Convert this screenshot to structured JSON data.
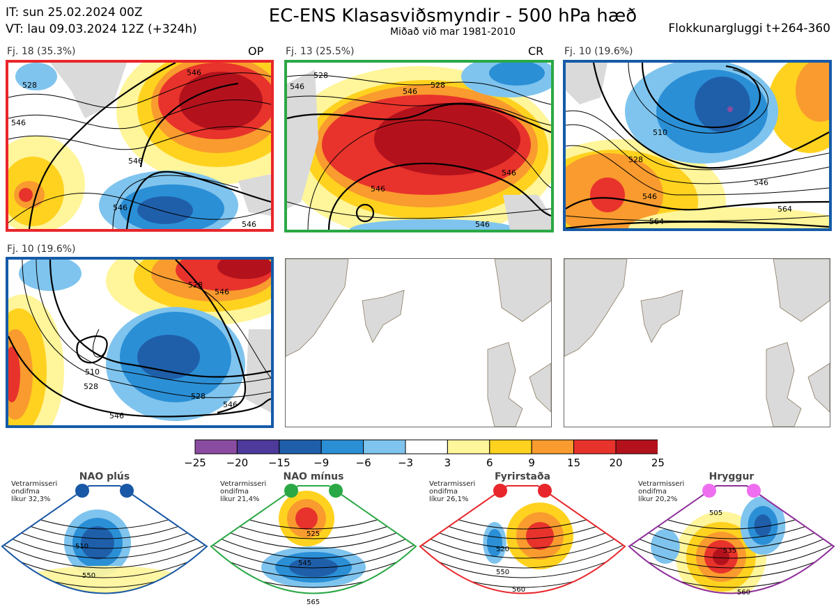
{
  "header": {
    "it": "IT: sun 25.02.2024 00Z",
    "vt": "VT: lau 09.03.2024 12Z  (+324h)",
    "title": "EC-ENS Klasasviðsmyndir - 500 hPa hæð",
    "subtitle": "Miðað við mar 1981-2010",
    "window": "Flokkunargluggi t+264-360"
  },
  "panels": [
    {
      "label": "Fj. 18 (35.3%)",
      "tag": "OP",
      "border": "#e8262b",
      "contours": [
        "528",
        "546",
        "546",
        "546",
        "546",
        "546"
      ]
    },
    {
      "label": "Fj. 13 (25.5%)",
      "tag": "CR",
      "border": "#2aa845",
      "contours": [
        "528",
        "546",
        "528",
        "546",
        "546",
        "546",
        "546"
      ]
    },
    {
      "label": "Fj. 10 (19.6%)",
      "tag": "",
      "border": "#155ba8",
      "contours": [
        "510",
        "528",
        "546",
        "546",
        "564",
        "564"
      ]
    },
    {
      "label": "Fj. 10 (19.6%)",
      "tag": "",
      "border": "#155ba8",
      "contours": [
        "528",
        "546",
        "510",
        "528",
        "528",
        "546",
        "546"
      ]
    }
  ],
  "colorbar": {
    "colors": [
      "#8a4ca0",
      "#4d3a9a",
      "#1f5faa",
      "#2b8fd6",
      "#7fc4ee",
      "#ffffff",
      "#fff59a",
      "#ffd21f",
      "#f99b2e",
      "#e8322c",
      "#b3121c"
    ],
    "ticks": [
      "−25",
      "−20",
      "−15",
      "−9",
      "−6",
      "−3",
      "3",
      "6",
      "9",
      "15",
      "20",
      "25"
    ]
  },
  "regimes": [
    {
      "name": "NAO plús",
      "color": "#1858a6",
      "dot": "#1858a6",
      "note": [
        "Vetrarmisseri",
        "ondifma",
        "líkur 32,3%"
      ],
      "contours": [
        "510",
        "550"
      ]
    },
    {
      "name": "NAO mínus",
      "color": "#2aa845",
      "dot": "#2aa845",
      "note": [
        "Vetrarmisseri",
        "ondifma",
        "líkur 21,4%"
      ],
      "contours": [
        "525",
        "545",
        "565"
      ]
    },
    {
      "name": "Fyrirstaða",
      "color": "#e8262b",
      "dot": "#e8262b",
      "note": [
        "Vetrarmisseri",
        "ondifma",
        "líkur 26,1%"
      ],
      "contours": [
        "520",
        "550",
        "560"
      ]
    },
    {
      "name": "Hryggur",
      "color": "#8f2e9b",
      "dot": "#ef6ef0",
      "note": [
        "Vetrarmisseri",
        "ondifma",
        "líkur 20,2%"
      ],
      "contours": [
        "505",
        "535",
        "560"
      ]
    }
  ]
}
